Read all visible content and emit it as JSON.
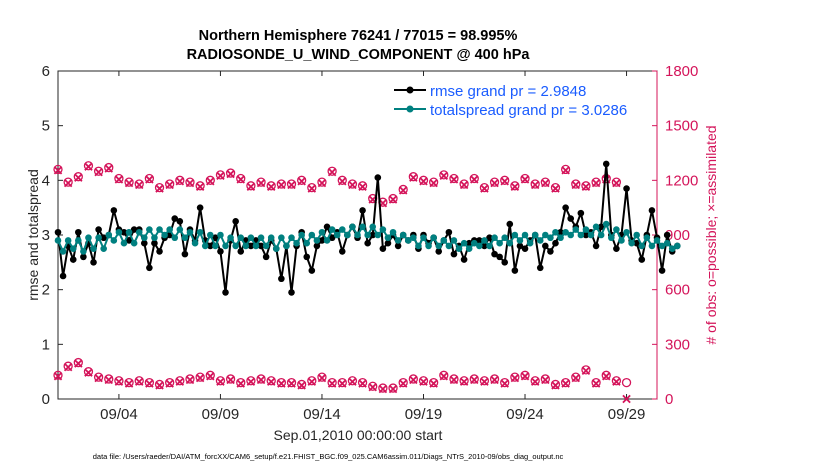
{
  "chart_data": {
    "type": "line",
    "title": [
      "Northern Hemisphere 76241 / 77015 = 98.995%",
      "RADIOSONDE_U_WIND_COMPONENT @ 400 hPa"
    ],
    "xlabel": "Sep.01,2010 00:00:00 start",
    "ylabel_left": "rmse and totalspread",
    "ylabel_right": "# of obs: o=possible; ×=assimilated",
    "footer": "data file: /Users/raeder/DAI/ATM_forcXX/CAM6_setup/f.e21.FHIST_BGC.f09_025.CAM6assim.011/Diags_NTrS_2010-09/obs_diag_output.nc",
    "x_range": [
      1,
      30.5
    ],
    "x_ticks": [
      4,
      9,
      14,
      19,
      24,
      29
    ],
    "x_tick_labels": [
      "09/04",
      "09/09",
      "09/14",
      "09/19",
      "09/24",
      "09/29"
    ],
    "ylim_left": [
      0,
      6
    ],
    "y_ticks_left": [
      0,
      1,
      2,
      3,
      4,
      5,
      6
    ],
    "ylim_right": [
      0,
      1800
    ],
    "y_ticks_right": [
      0,
      300,
      600,
      900,
      1200,
      1500,
      1800
    ],
    "colors": {
      "rmse": "#000000",
      "spread": "#008080",
      "obs": "#d4145a",
      "legend_text": "#1a5cff"
    },
    "series": [
      {
        "name": "rmse grand pr = 2.9848",
        "axis": "left",
        "x_start": 1,
        "x_step": 0.25,
        "values": [
          3.05,
          2.25,
          2.8,
          2.55,
          3.05,
          2.6,
          2.85,
          2.5,
          3.1,
          2.95,
          3.0,
          3.45,
          3.1,
          3.05,
          2.9,
          3.1,
          3.1,
          2.85,
          2.4,
          2.85,
          2.7,
          2.95,
          3.0,
          3.3,
          3.25,
          2.65,
          3.1,
          2.9,
          3.5,
          2.9,
          2.8,
          2.95,
          2.7,
          1.95,
          2.9,
          3.25,
          2.7,
          2.9,
          2.8,
          2.9,
          2.8,
          2.6,
          2.9,
          2.75,
          2.2,
          2.8,
          1.95,
          2.8,
          3.05,
          2.6,
          2.35,
          2.8,
          2.9,
          3.15,
          2.95,
          3.05,
          2.7,
          3.0,
          3.15,
          2.95,
          3.45,
          2.85,
          3.0,
          4.05,
          2.75,
          2.85,
          3.0,
          2.8,
          3.0,
          2.9,
          3.0,
          2.75,
          3.0,
          2.85,
          2.95,
          2.7,
          2.9,
          3.05,
          2.65,
          2.8,
          2.55,
          2.85,
          2.9,
          2.9,
          2.8,
          2.95,
          2.65,
          2.6,
          2.5,
          3.2,
          2.35,
          2.8,
          2.75,
          2.9,
          3.0,
          2.4,
          2.8,
          2.7,
          2.85,
          3.05,
          3.5,
          3.3,
          3.15,
          3.4,
          3.0,
          3.05,
          2.8,
          3.15,
          4.3,
          3.0,
          2.75,
          3.0,
          3.85,
          2.9,
          2.85,
          2.55,
          3.0,
          3.45,
          2.95,
          2.35,
          3.0,
          2.7,
          2.8
        ]
      },
      {
        "name": "totalspread grand pr = 3.0286",
        "axis": "left",
        "x_start": 1,
        "x_step": 0.25,
        "values": [
          2.9,
          2.7,
          2.9,
          2.75,
          2.9,
          2.7,
          2.95,
          2.75,
          2.95,
          2.75,
          3.0,
          2.9,
          3.05,
          2.85,
          3.05,
          2.85,
          3.05,
          2.95,
          3.1,
          2.95,
          3.1,
          3.0,
          3.1,
          2.95,
          3.1,
          2.95,
          3.05,
          2.85,
          3.05,
          2.8,
          3.0,
          2.8,
          3.0,
          2.8,
          2.95,
          2.8,
          2.95,
          2.8,
          2.95,
          2.8,
          2.95,
          2.8,
          2.95,
          2.75,
          2.95,
          2.8,
          2.95,
          2.85,
          3.0,
          2.85,
          3.0,
          2.9,
          3.05,
          2.9,
          3.1,
          3.0,
          3.1,
          3.0,
          3.15,
          3.0,
          3.15,
          3.0,
          3.15,
          3.0,
          3.1,
          2.95,
          3.05,
          2.9,
          3.0,
          2.9,
          2.95,
          2.8,
          2.95,
          2.8,
          2.95,
          2.8,
          2.9,
          2.8,
          2.9,
          2.75,
          2.85,
          2.75,
          2.85,
          2.8,
          2.9,
          2.8,
          2.95,
          2.85,
          2.95,
          2.85,
          3.0,
          2.9,
          3.0,
          2.85,
          3.0,
          2.9,
          3.0,
          2.95,
          3.05,
          2.95,
          3.05,
          3.0,
          3.1,
          3.0,
          3.1,
          3.0,
          3.15,
          3.0,
          3.2,
          2.95,
          3.1,
          2.9,
          3.05,
          2.85,
          3.0,
          2.8,
          2.95,
          2.8,
          2.9,
          2.8,
          2.85,
          2.75,
          2.8
        ]
      },
      {
        "name": "obs possible",
        "axis": "right",
        "x_start": 1,
        "x_step": 0.5,
        "values": [
          1260,
          1190,
          1220,
          1280,
          1250,
          1270,
          1210,
          1190,
          1180,
          1210,
          1160,
          1180,
          1200,
          1190,
          1170,
          1200,
          1230,
          1240,
          1210,
          1170,
          1190,
          1170,
          1180,
          1180,
          1200,
          1160,
          1190,
          1250,
          1200,
          1180,
          1170,
          1100,
          1080,
          1100,
          1150,
          1220,
          1200,
          1190,
          1230,
          1210,
          1180,
          1210,
          1160,
          1190,
          1200,
          1170,
          1210,
          1180,
          1190,
          1160,
          1260,
          1180,
          1170,
          1190,
          1210,
          1190
        ]
      },
      {
        "name": "obs assimilated",
        "axis": "right",
        "x_start": 1,
        "x_step": 0.5,
        "values": [
          1255,
          1185,
          1215,
          1275,
          1245,
          1265,
          1205,
          1185,
          1175,
          1205,
          1155,
          1175,
          1195,
          1185,
          1165,
          1195,
          1225,
          1235,
          1205,
          1165,
          1185,
          1165,
          1175,
          1175,
          1195,
          1155,
          1185,
          1245,
          1195,
          1175,
          1165,
          1095,
          1075,
          1095,
          1145,
          1215,
          1195,
          1185,
          1225,
          1205,
          1175,
          1205,
          1155,
          1185,
          1195,
          1165,
          1205,
          1175,
          1185,
          1155,
          1255,
          1175,
          1165,
          1185,
          1205,
          1185
        ]
      },
      {
        "name": "obs possible (00Z)",
        "axis": "right",
        "x_start": 1,
        "x_step": 0.5,
        "values": [
          130,
          180,
          200,
          150,
          120,
          110,
          100,
          90,
          100,
          90,
          80,
          90,
          100,
          110,
          120,
          130,
          100,
          110,
          90,
          100,
          110,
          100,
          90,
          90,
          80,
          100,
          120,
          90,
          90,
          100,
          90,
          70,
          60,
          60,
          90,
          110,
          100,
          90,
          130,
          110,
          100,
          110,
          100,
          110,
          90,
          120,
          130,
          100,
          110,
          80,
          90,
          120,
          160,
          90,
          130,
          100,
          90
        ]
      },
      {
        "name": "obs assimilated (00Z)",
        "axis": "right",
        "x_start": 1,
        "x_step": 0.5,
        "values": [
          125,
          175,
          195,
          145,
          115,
          105,
          95,
          85,
          95,
          85,
          75,
          85,
          95,
          105,
          115,
          125,
          95,
          105,
          85,
          95,
          105,
          95,
          85,
          85,
          75,
          95,
          115,
          85,
          85,
          95,
          85,
          65,
          55,
          55,
          85,
          105,
          95,
          85,
          125,
          105,
          95,
          105,
          95,
          105,
          85,
          115,
          125,
          95,
          105,
          75,
          85,
          115,
          155,
          85,
          125,
          95,
          0
        ]
      }
    ]
  }
}
